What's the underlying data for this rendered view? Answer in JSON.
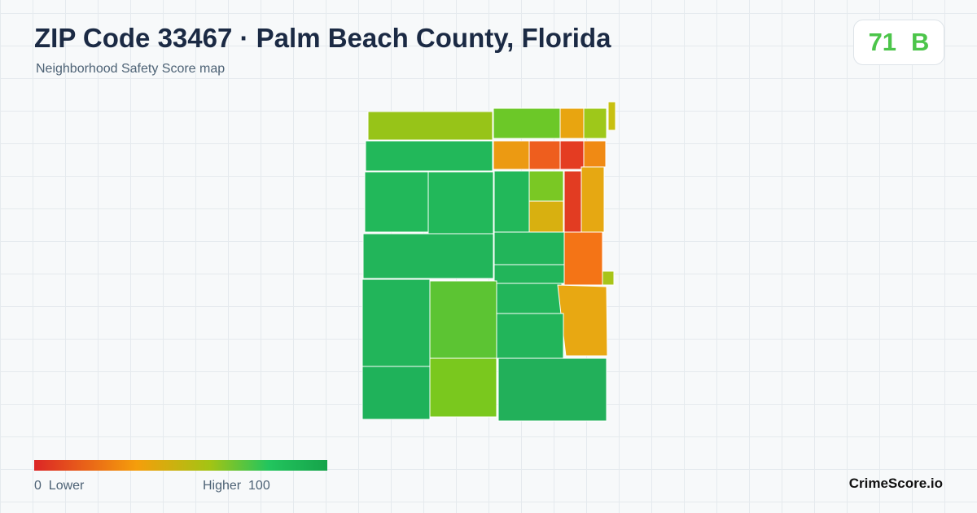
{
  "header": {
    "title": "ZIP Code 33467 · Palm Beach County, Florida",
    "subtitle": "Neighborhood Safety Score map"
  },
  "score": {
    "value": 71,
    "grade": "B"
  },
  "legend": {
    "min": 0,
    "min_label": "Lower",
    "max_label": "Higher",
    "max": 100
  },
  "brand": "CrimeScore.io"
}
